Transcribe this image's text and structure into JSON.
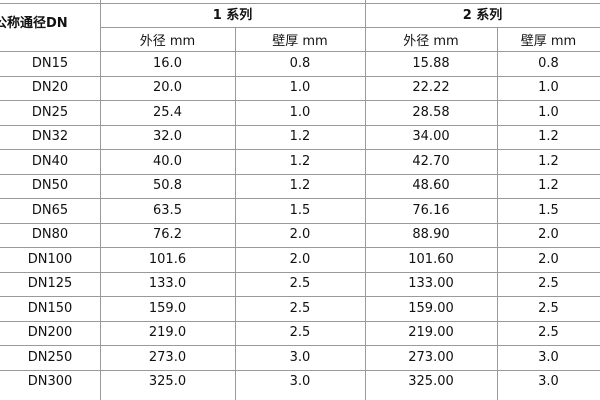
{
  "table": {
    "header": {
      "first": "公称通径DN",
      "groups": [
        "1 系列",
        "2 系列"
      ],
      "sub": [
        "外径 mm",
        "壁厚 mm",
        "外径 mm",
        "壁厚 mm"
      ]
    },
    "rows": [
      [
        "DN15",
        "16.0",
        "0.8",
        "15.88",
        "0.8"
      ],
      [
        "DN20",
        "20.0",
        "1.0",
        "22.22",
        "1.0"
      ],
      [
        "DN25",
        "25.4",
        "1.0",
        "28.58",
        "1.0"
      ],
      [
        "DN32",
        "32.0",
        "1.2",
        "34.00",
        "1.2"
      ],
      [
        "DN40",
        "40.0",
        "1.2",
        "42.70",
        "1.2"
      ],
      [
        "DN50",
        "50.8",
        "1.2",
        "48.60",
        "1.2"
      ],
      [
        "DN65",
        "63.5",
        "1.5",
        "76.16",
        "1.5"
      ],
      [
        "DN80",
        "76.2",
        "2.0",
        "88.90",
        "2.0"
      ],
      [
        "DN100",
        "101.6",
        "2.0",
        "101.60",
        "2.0"
      ],
      [
        "DN125",
        "133.0",
        "2.5",
        "133.00",
        "2.5"
      ],
      [
        "DN150",
        "159.0",
        "2.5",
        "159.00",
        "2.5"
      ],
      [
        "DN200",
        "219.0",
        "2.5",
        "219.00",
        "2.5"
      ],
      [
        "DN250",
        "273.0",
        "3.0",
        "273.00",
        "3.0"
      ],
      [
        "DN300",
        "325.0",
        "3.0",
        "325.00",
        "3.0"
      ]
    ]
  }
}
